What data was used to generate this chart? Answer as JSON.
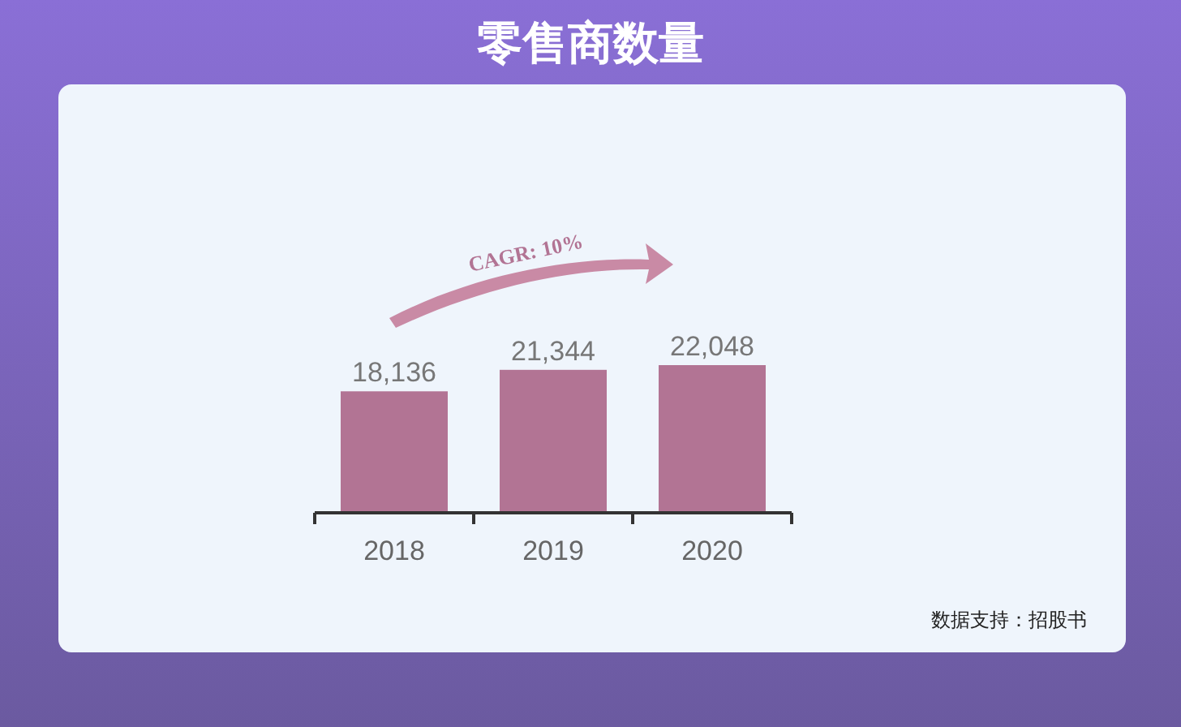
{
  "chart_data": {
    "type": "bar",
    "title": "零售商数量",
    "categories": [
      "2018",
      "2019",
      "2020"
    ],
    "values": [
      18136,
      21344,
      22048
    ],
    "value_labels": [
      "18,136",
      "21,344",
      "22,048"
    ],
    "color": "#b27494",
    "annotations": [
      "CAGR: 10%",
      "数据支持：招股书"
    ]
  }
}
